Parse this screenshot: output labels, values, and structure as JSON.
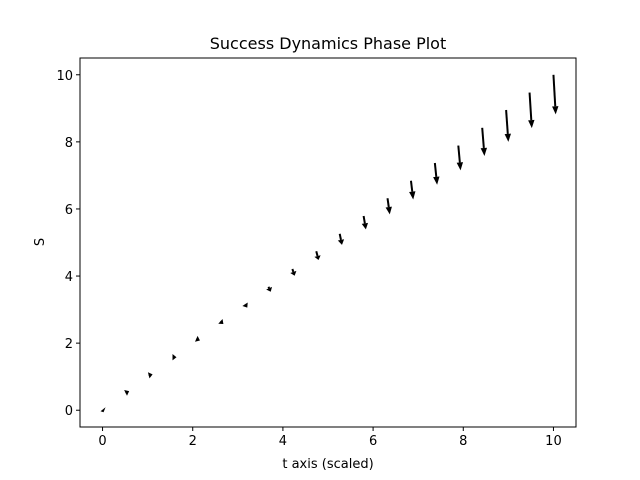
{
  "chart_data": {
    "type": "quiver",
    "title": "Success Dynamics Phase Plot",
    "xlabel": "t axis (scaled)",
    "ylabel": "S",
    "xlim": [
      -0.5,
      10.5
    ],
    "ylim": [
      -0.5,
      10.5
    ],
    "grid": false,
    "x_ticks": [
      0,
      2,
      4,
      6,
      8,
      10
    ],
    "y_ticks": [
      0,
      2,
      4,
      6,
      8,
      10
    ],
    "arrow_color": "#000000",
    "vectors": [
      {
        "x": 0.0,
        "y": 0.0,
        "u": 0.0,
        "v": 0.0
      },
      {
        "x": 0.53,
        "y": 0.53,
        "u": 0.06,
        "v": 0.04
      },
      {
        "x": 1.05,
        "y": 1.05,
        "u": 0.06,
        "v": 0.02
      },
      {
        "x": 1.58,
        "y": 1.58,
        "u": 0.06,
        "v": 0.0
      },
      {
        "x": 2.11,
        "y": 2.11,
        "u": 0.05,
        "v": -0.03
      },
      {
        "x": 2.63,
        "y": 2.63,
        "u": 0.05,
        "v": -0.06
      },
      {
        "x": 3.16,
        "y": 3.16,
        "u": 0.05,
        "v": -0.1
      },
      {
        "x": 3.68,
        "y": 3.68,
        "u": 0.05,
        "v": -0.15
      },
      {
        "x": 4.21,
        "y": 4.21,
        "u": 0.05,
        "v": -0.2
      },
      {
        "x": 4.74,
        "y": 4.74,
        "u": 0.05,
        "v": -0.26
      },
      {
        "x": 5.26,
        "y": 5.26,
        "u": 0.05,
        "v": -0.33
      },
      {
        "x": 5.79,
        "y": 5.79,
        "u": 0.05,
        "v": -0.4
      },
      {
        "x": 6.32,
        "y": 6.32,
        "u": 0.05,
        "v": -0.48
      },
      {
        "x": 6.84,
        "y": 6.84,
        "u": 0.05,
        "v": -0.56
      },
      {
        "x": 7.37,
        "y": 7.37,
        "u": 0.05,
        "v": -0.65
      },
      {
        "x": 7.89,
        "y": 7.89,
        "u": 0.05,
        "v": -0.74
      },
      {
        "x": 8.42,
        "y": 8.42,
        "u": 0.05,
        "v": -0.84
      },
      {
        "x": 8.95,
        "y": 8.95,
        "u": 0.05,
        "v": -0.95
      },
      {
        "x": 9.47,
        "y": 9.47,
        "u": 0.05,
        "v": -1.06
      },
      {
        "x": 10.0,
        "y": 10.0,
        "u": 0.05,
        "v": -1.18
      }
    ]
  }
}
